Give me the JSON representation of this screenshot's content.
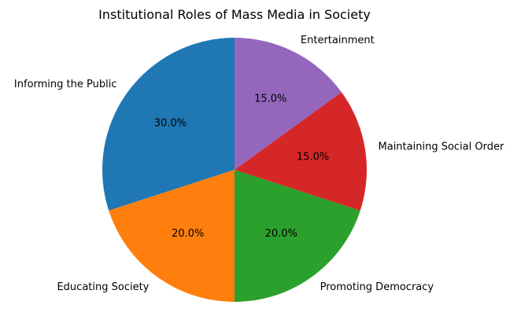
{
  "chart_data": {
    "type": "pie",
    "title": "Institutional Roles of Mass Media in Society",
    "start_angle_deg": 90,
    "direction": "counterclockwise",
    "slices": [
      {
        "label": "Informing the Public",
        "value": 30,
        "pct_label": "30.0%",
        "color": "#1f77b4"
      },
      {
        "label": "Educating Society",
        "value": 20,
        "pct_label": "20.0%",
        "color": "#ff7f0e"
      },
      {
        "label": "Promoting Democracy",
        "value": 20,
        "pct_label": "20.0%",
        "color": "#2ca02c"
      },
      {
        "label": "Maintaining Social Order",
        "value": 15,
        "pct_label": "15.0%",
        "color": "#d62728"
      },
      {
        "label": "Entertainment",
        "value": 15,
        "pct_label": "15.0%",
        "color": "#9467bd"
      }
    ]
  }
}
